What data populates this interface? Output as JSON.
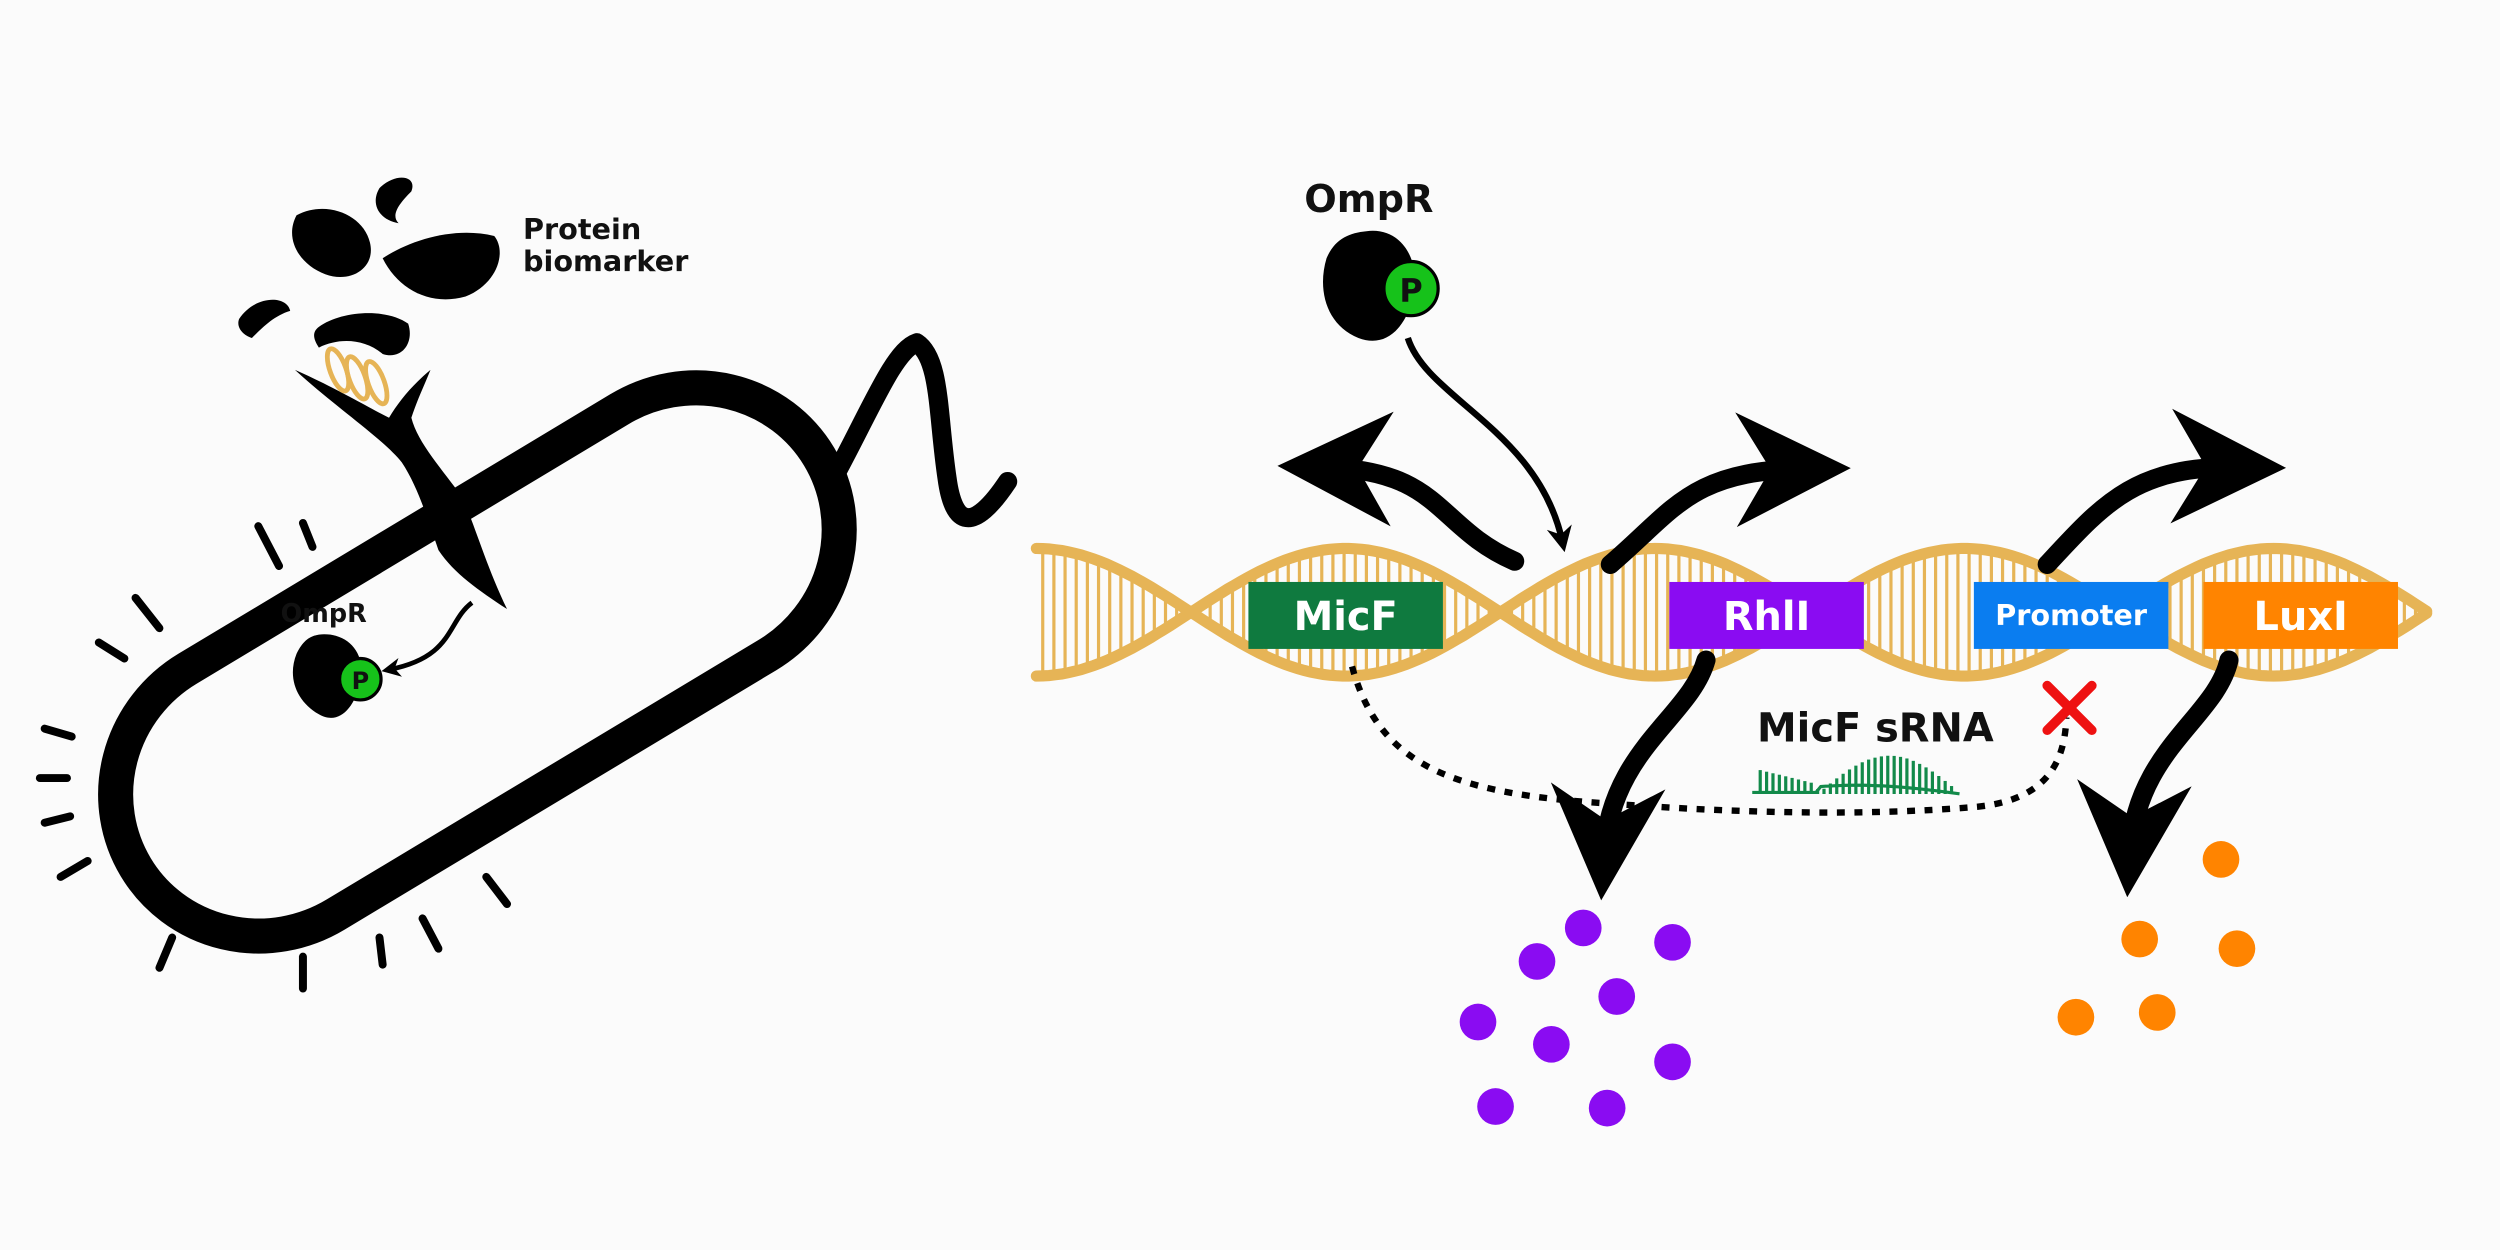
{
  "bacterium": {
    "protein_label_line1": "Protein",
    "protein_label_line2": "biomarker",
    "receptor_label": "OmpR",
    "phospho_label": "P"
  },
  "circuit": {
    "receptor_label": "OmpR",
    "phospho_label": "P",
    "srna_label": "MicF sRNA",
    "genes": [
      {
        "label": "MicF",
        "color": "#0f7a3f"
      },
      {
        "label": "RhlI",
        "color": "#8a0cf2"
      },
      {
        "label": "Promoter",
        "color": "#0a7df0"
      },
      {
        "label": "LuxI",
        "color": "#ff8400"
      }
    ]
  },
  "colors": {
    "dna": "#e6b456",
    "phospho": "#16c21a",
    "rhl_product": "#8a0cf2",
    "lux_product": "#ff8400",
    "repression": "#ee1111",
    "srna": "#128a4a"
  }
}
